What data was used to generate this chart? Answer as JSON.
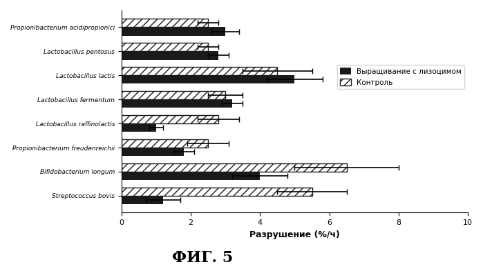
{
  "species": [
    "Propionibacterium acidipropionici",
    "Lactobacillus pentosus",
    "Lactobacillus lactis",
    "Lactobacillus fermentum",
    "Lactobacillus raffinolactis",
    "Propionibacterium freudenreichii",
    "Bifidobacterium longum",
    "Streptococcus bovis"
  ],
  "lysozyme_values": [
    3.0,
    2.8,
    5.0,
    3.2,
    1.0,
    1.8,
    4.0,
    1.2
  ],
  "control_values": [
    2.5,
    2.5,
    4.5,
    3.0,
    2.8,
    2.5,
    6.5,
    5.5
  ],
  "lysozyme_errors": [
    0.4,
    0.3,
    0.8,
    0.3,
    0.2,
    0.3,
    0.8,
    0.5
  ],
  "control_errors": [
    0.3,
    0.3,
    1.0,
    0.5,
    0.6,
    0.6,
    1.5,
    1.0
  ],
  "xlabel": "Разрушение (%/ч)",
  "title": "ФИГ. 5",
  "legend_lysozyme": "Выращивание с лизоцимом",
  "legend_control": "Контроль",
  "xlim": [
    0,
    10
  ],
  "bar_height": 0.35,
  "lysozyme_color": "#1a1a1a",
  "control_hatch": "///",
  "control_facecolor": "white",
  "control_edgecolor": "#1a1a1a",
  "figsize": [
    6.99,
    3.93
  ],
  "dpi": 100
}
